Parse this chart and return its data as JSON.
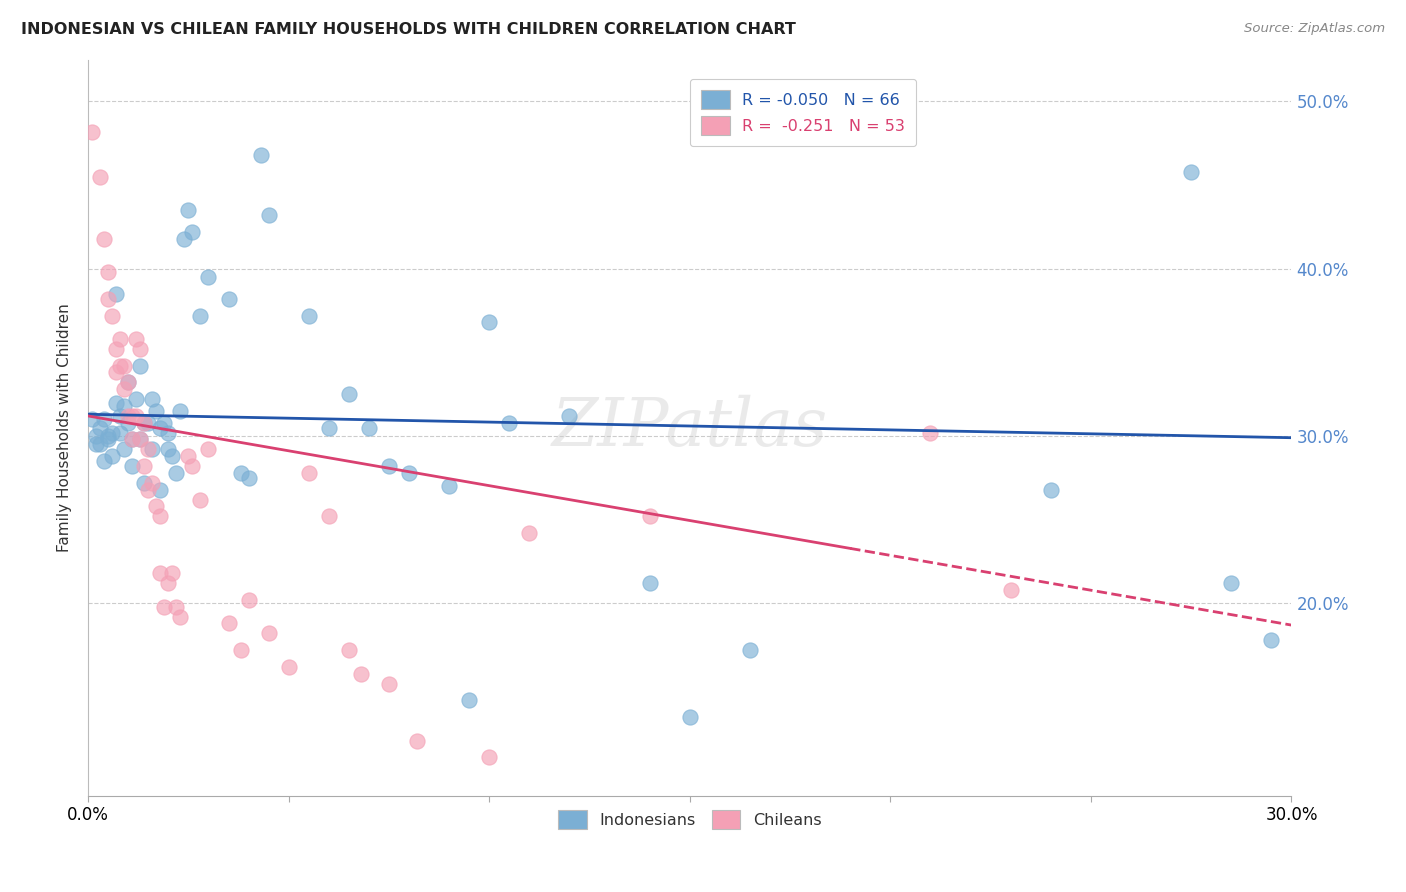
{
  "title": "INDONESIAN VS CHILEAN FAMILY HOUSEHOLDS WITH CHILDREN CORRELATION CHART",
  "source": "Source: ZipAtlas.com",
  "ylabel": "Family Households with Children",
  "legend_entries": [
    {
      "label": "R = -0.050   N = 66",
      "color": "#a8c4e0"
    },
    {
      "label": "R =  -0.251   N = 53",
      "color": "#f4a7b9"
    }
  ],
  "legend_bottom": [
    "Indonesians",
    "Chileans"
  ],
  "xmin": 0.0,
  "xmax": 0.3,
  "ymin": 0.085,
  "ymax": 0.525,
  "yticks": [
    0.2,
    0.3,
    0.4,
    0.5
  ],
  "xticks": [
    0.0,
    0.05,
    0.1,
    0.15,
    0.2,
    0.25,
    0.3
  ],
  "xtick_labels_show": [
    "0.0%",
    "",
    "",
    "",
    "",
    "",
    "30.0%"
  ],
  "blue_color": "#7bafd4",
  "pink_color": "#f4a0b5",
  "blue_line_color": "#2255aa",
  "pink_line_color": "#d94070",
  "blue_scatter": [
    [
      0.001,
      0.31
    ],
    [
      0.002,
      0.3
    ],
    [
      0.002,
      0.295
    ],
    [
      0.003,
      0.305
    ],
    [
      0.003,
      0.295
    ],
    [
      0.004,
      0.285
    ],
    [
      0.004,
      0.31
    ],
    [
      0.005,
      0.3
    ],
    [
      0.005,
      0.298
    ],
    [
      0.006,
      0.302
    ],
    [
      0.006,
      0.288
    ],
    [
      0.007,
      0.385
    ],
    [
      0.007,
      0.32
    ],
    [
      0.008,
      0.302
    ],
    [
      0.008,
      0.312
    ],
    [
      0.009,
      0.292
    ],
    [
      0.009,
      0.318
    ],
    [
      0.01,
      0.332
    ],
    [
      0.01,
      0.308
    ],
    [
      0.011,
      0.298
    ],
    [
      0.011,
      0.282
    ],
    [
      0.012,
      0.322
    ],
    [
      0.013,
      0.342
    ],
    [
      0.013,
      0.298
    ],
    [
      0.014,
      0.308
    ],
    [
      0.014,
      0.272
    ],
    [
      0.015,
      0.308
    ],
    [
      0.016,
      0.322
    ],
    [
      0.016,
      0.292
    ],
    [
      0.017,
      0.315
    ],
    [
      0.018,
      0.305
    ],
    [
      0.018,
      0.268
    ],
    [
      0.019,
      0.308
    ],
    [
      0.02,
      0.292
    ],
    [
      0.02,
      0.302
    ],
    [
      0.021,
      0.288
    ],
    [
      0.022,
      0.278
    ],
    [
      0.023,
      0.315
    ],
    [
      0.024,
      0.418
    ],
    [
      0.025,
      0.435
    ],
    [
      0.026,
      0.422
    ],
    [
      0.028,
      0.372
    ],
    [
      0.03,
      0.395
    ],
    [
      0.035,
      0.382
    ],
    [
      0.038,
      0.278
    ],
    [
      0.04,
      0.275
    ],
    [
      0.043,
      0.468
    ],
    [
      0.045,
      0.432
    ],
    [
      0.055,
      0.372
    ],
    [
      0.06,
      0.305
    ],
    [
      0.065,
      0.325
    ],
    [
      0.07,
      0.305
    ],
    [
      0.075,
      0.282
    ],
    [
      0.08,
      0.278
    ],
    [
      0.09,
      0.27
    ],
    [
      0.095,
      0.142
    ],
    [
      0.1,
      0.368
    ],
    [
      0.105,
      0.308
    ],
    [
      0.12,
      0.312
    ],
    [
      0.14,
      0.212
    ],
    [
      0.15,
      0.132
    ],
    [
      0.165,
      0.172
    ],
    [
      0.24,
      0.268
    ],
    [
      0.275,
      0.458
    ],
    [
      0.285,
      0.212
    ],
    [
      0.295,
      0.178
    ]
  ],
  "pink_scatter": [
    [
      0.001,
      0.482
    ],
    [
      0.003,
      0.455
    ],
    [
      0.004,
      0.418
    ],
    [
      0.005,
      0.398
    ],
    [
      0.005,
      0.382
    ],
    [
      0.006,
      0.372
    ],
    [
      0.007,
      0.352
    ],
    [
      0.007,
      0.338
    ],
    [
      0.008,
      0.358
    ],
    [
      0.008,
      0.342
    ],
    [
      0.009,
      0.342
    ],
    [
      0.009,
      0.328
    ],
    [
      0.01,
      0.312
    ],
    [
      0.01,
      0.332
    ],
    [
      0.011,
      0.312
    ],
    [
      0.011,
      0.298
    ],
    [
      0.012,
      0.312
    ],
    [
      0.012,
      0.358
    ],
    [
      0.013,
      0.352
    ],
    [
      0.013,
      0.298
    ],
    [
      0.014,
      0.308
    ],
    [
      0.014,
      0.282
    ],
    [
      0.015,
      0.292
    ],
    [
      0.015,
      0.268
    ],
    [
      0.016,
      0.272
    ],
    [
      0.017,
      0.258
    ],
    [
      0.018,
      0.252
    ],
    [
      0.018,
      0.218
    ],
    [
      0.019,
      0.198
    ],
    [
      0.02,
      0.212
    ],
    [
      0.021,
      0.218
    ],
    [
      0.022,
      0.198
    ],
    [
      0.023,
      0.192
    ],
    [
      0.025,
      0.288
    ],
    [
      0.026,
      0.282
    ],
    [
      0.028,
      0.262
    ],
    [
      0.03,
      0.292
    ],
    [
      0.035,
      0.188
    ],
    [
      0.038,
      0.172
    ],
    [
      0.04,
      0.202
    ],
    [
      0.045,
      0.182
    ],
    [
      0.05,
      0.162
    ],
    [
      0.055,
      0.278
    ],
    [
      0.06,
      0.252
    ],
    [
      0.065,
      0.172
    ],
    [
      0.068,
      0.158
    ],
    [
      0.075,
      0.152
    ],
    [
      0.082,
      0.118
    ],
    [
      0.1,
      0.108
    ],
    [
      0.11,
      0.242
    ],
    [
      0.14,
      0.252
    ],
    [
      0.21,
      0.302
    ],
    [
      0.23,
      0.208
    ]
  ],
  "blue_trendline": [
    [
      0.0,
      0.313
    ],
    [
      0.3,
      0.299
    ]
  ],
  "pink_trendline_solid_end": 0.185,
  "pink_trendline": [
    [
      0.0,
      0.312
    ],
    [
      0.3,
      0.187
    ]
  ],
  "pink_trendline_dashed_start": 0.19,
  "watermark": "ZIPatlas"
}
